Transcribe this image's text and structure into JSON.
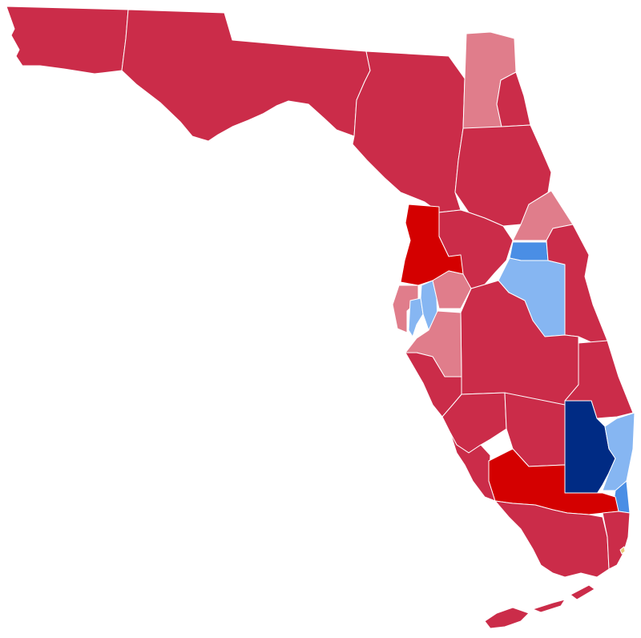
{
  "map": {
    "region": "Florida",
    "background": "#ffffff",
    "border_color": "#ffffff",
    "color_scale": {
      "strong-rep": "#d40000",
      "likely-rep": "#cb2c49",
      "lean-rep": "#e07d8b",
      "lean-dem": "#86b6f2",
      "likely-dem": "#4a8ee5",
      "strong-dem": "#002b84",
      "tiny-marker": "#e8c87a"
    },
    "districts": [
      {
        "id": "panhandle-west",
        "rating": "likely-rep"
      },
      {
        "id": "panhandle-central",
        "rating": "likely-rep"
      },
      {
        "id": "big-bend",
        "rating": "likely-rep"
      },
      {
        "id": "north-central",
        "rating": "likely-rep"
      },
      {
        "id": "jacksonville",
        "rating": "lean-rep"
      },
      {
        "id": "northeast-coast",
        "rating": "likely-rep"
      },
      {
        "id": "st-johns",
        "rating": "likely-rep"
      },
      {
        "id": "hernando-pasco",
        "rating": "strong-rep"
      },
      {
        "id": "nature-coast",
        "rating": "likely-rep"
      },
      {
        "id": "seminole",
        "rating": "lean-rep"
      },
      {
        "id": "orlando-north",
        "rating": "likely-dem"
      },
      {
        "id": "orlando",
        "rating": "lean-dem"
      },
      {
        "id": "space-coast",
        "rating": "likely-rep"
      },
      {
        "id": "pinellas-north",
        "rating": "lean-rep"
      },
      {
        "id": "pinellas-south",
        "rating": "lean-dem"
      },
      {
        "id": "tampa",
        "rating": "lean-dem"
      },
      {
        "id": "plant-city",
        "rating": "lean-rep"
      },
      {
        "id": "sarasota",
        "rating": "lean-rep"
      },
      {
        "id": "polk-central",
        "rating": "likely-rep"
      },
      {
        "id": "treasure-coast",
        "rating": "likely-rep"
      },
      {
        "id": "manatee",
        "rating": "likely-rep"
      },
      {
        "id": "charlotte",
        "rating": "likely-rep"
      },
      {
        "id": "fort-myers",
        "rating": "likely-rep"
      },
      {
        "id": "glades",
        "rating": "likely-rep"
      },
      {
        "id": "palm-beach-west",
        "rating": "strong-dem"
      },
      {
        "id": "palm-beach-coast",
        "rating": "lean-dem"
      },
      {
        "id": "broward-coast",
        "rating": "likely-dem"
      },
      {
        "id": "collier",
        "rating": "strong-rep"
      },
      {
        "id": "miami-dade",
        "rating": "likely-rep"
      },
      {
        "id": "miami-coast",
        "rating": "likely-rep"
      },
      {
        "id": "keys",
        "rating": "likely-rep"
      },
      {
        "id": "miami-marker",
        "rating": "tiny-marker"
      }
    ]
  }
}
